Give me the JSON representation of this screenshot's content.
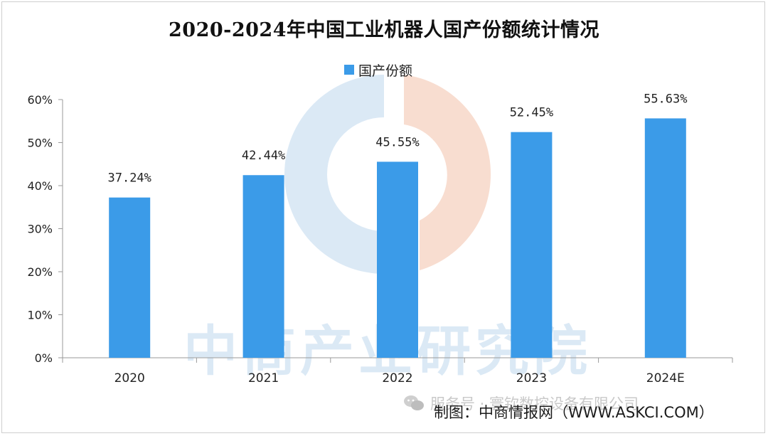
{
  "chart_data": {
    "type": "bar",
    "title": "2020-2024年中国工业机器人国产份额统计情况",
    "categories": [
      "2020",
      "2021",
      "2022",
      "2023",
      "2024E"
    ],
    "series": [
      {
        "name": "国产份额",
        "values": [
          37.24,
          42.44,
          45.55,
          52.45,
          55.63
        ]
      }
    ],
    "data_labels": [
      "37.24%",
      "42.44%",
      "45.55%",
      "52.45%",
      "55.63%"
    ],
    "y_ticks": [
      "0%",
      "10%",
      "20%",
      "30%",
      "40%",
      "50%",
      "60%"
    ],
    "ylim": [
      0,
      60
    ],
    "xlabel": "",
    "ylabel": "",
    "grid": false,
    "legend_position": "top-center",
    "bar_color": "#3b9be8"
  },
  "watermark": {
    "text": "中商产业研究院"
  },
  "footer": {
    "social": "服务号 · 寰钦数控设备有限公司",
    "source": "制图：中商情报网（WWW.ASKCI.COM）"
  }
}
